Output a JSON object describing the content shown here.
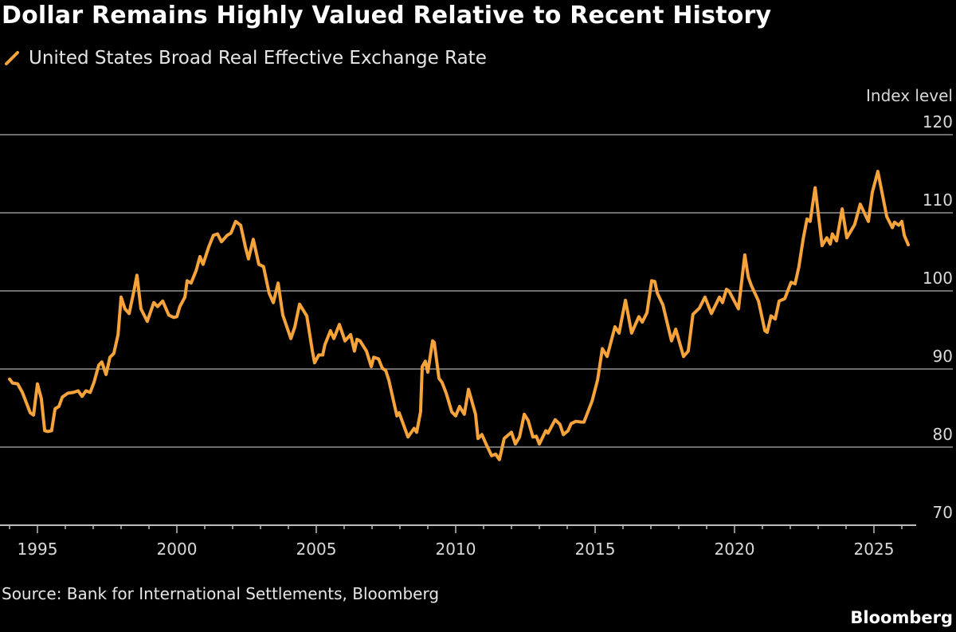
{
  "colors": {
    "background": "#000000",
    "series": "#f5a33a",
    "grid": "#6e6e6e",
    "text": "#d9d9d9"
  },
  "title": "Dollar Remains Highly Valued Relative to Recent History",
  "source": "Source: Bank for International Settlements, Bloomberg",
  "brand": "Bloomberg",
  "chart_data": {
    "type": "line",
    "title": "Dollar Remains Highly Valued Relative to Recent History",
    "ylabel": "Index level",
    "ylim": [
      70,
      120
    ],
    "yticks": [
      "70",
      "80",
      "90",
      "100",
      "110",
      "120"
    ],
    "xlim": [
      1994,
      2026.3
    ],
    "xticks": [
      "1995",
      "2000",
      "2005",
      "2010",
      "2015",
      "2020",
      "2025"
    ],
    "grid": true,
    "legend_position": "top-left",
    "series": [
      {
        "name": "United States Broad Real Effective Exchange Rate",
        "x": [
          1994.0,
          1994.11,
          1994.29,
          1994.46,
          1994.6,
          1994.74,
          1994.86,
          1995.0,
          1995.14,
          1995.26,
          1995.37,
          1995.51,
          1995.63,
          1995.77,
          1995.89,
          1996.09,
          1996.29,
          1996.46,
          1996.6,
          1996.74,
          1996.89,
          1997.03,
          1997.2,
          1997.31,
          1997.46,
          1997.6,
          1997.74,
          1997.89,
          1998.0,
          1998.14,
          1998.29,
          1998.46,
          1998.57,
          1998.71,
          1998.94,
          1999.17,
          1999.31,
          1999.49,
          1999.71,
          1999.89,
          2000.0,
          2000.11,
          2000.29,
          2000.37,
          2000.51,
          2000.69,
          2000.83,
          2000.94,
          2001.14,
          2001.31,
          2001.46,
          2001.6,
          2001.8,
          2001.94,
          2002.11,
          2002.29,
          2002.46,
          2002.57,
          2002.74,
          2002.94,
          2003.11,
          2003.31,
          2003.46,
          2003.63,
          2003.8,
          2004.09,
          2004.23,
          2004.4,
          2004.66,
          2004.86,
          2004.94,
          2005.09,
          2005.23,
          2005.31,
          2005.51,
          2005.63,
          2005.83,
          2006.03,
          2006.23,
          2006.37,
          2006.46,
          2006.57,
          2006.8,
          2006.97,
          2007.06,
          2007.23,
          2007.37,
          2007.49,
          2007.6,
          2007.89,
          2007.97,
          2008.29,
          2008.51,
          2008.6,
          2008.74,
          2008.8,
          2008.91,
          2009.0,
          2009.17,
          2009.23,
          2009.4,
          2009.51,
          2009.66,
          2009.86,
          2010.0,
          2010.14,
          2010.31,
          2010.46,
          2010.71,
          2010.8,
          2010.94,
          2011.09,
          2011.29,
          2011.43,
          2011.57,
          2011.74,
          2012.0,
          2012.14,
          2012.29,
          2012.46,
          2012.6,
          2012.77,
          2012.89,
          2013.0,
          2013.23,
          2013.31,
          2013.57,
          2013.74,
          2013.86,
          2014.03,
          2014.14,
          2014.31,
          2014.51,
          2014.6,
          2014.89,
          2015.09,
          2015.26,
          2015.43,
          2015.71,
          2015.86,
          2015.94,
          2016.09,
          2016.31,
          2016.57,
          2016.69,
          2016.86,
          2017.03,
          2017.14,
          2017.23,
          2017.43,
          2017.74,
          2017.89,
          2018.17,
          2018.34,
          2018.51,
          2018.74,
          2018.94,
          2019.17,
          2019.46,
          2019.57,
          2019.71,
          2019.8,
          2020.14,
          2020.37,
          2020.49,
          2020.6,
          2020.86,
          2021.09,
          2021.17,
          2021.31,
          2021.46,
          2021.6,
          2021.8,
          2022.03,
          2022.17,
          2022.31,
          2022.46,
          2022.6,
          2022.71,
          2022.89,
          2023.14,
          2023.31,
          2023.43,
          2023.51,
          2023.66,
          2023.86,
          2024.03,
          2024.31,
          2024.51,
          2024.8,
          2024.94,
          2025.14,
          2025.46,
          2025.66,
          2025.74,
          2025.89,
          2026.0,
          2026.09,
          2026.23
        ],
        "values": [
          88.7,
          88.2,
          88.1,
          87.0,
          85.7,
          84.4,
          84.1,
          88.1,
          86.2,
          82.1,
          82.0,
          82.1,
          84.9,
          85.2,
          86.4,
          86.9,
          87.0,
          87.2,
          86.5,
          87.2,
          87.0,
          88.3,
          90.5,
          90.9,
          89.3,
          91.5,
          92.0,
          94.4,
          99.2,
          97.7,
          97.1,
          100.0,
          102.0,
          97.7,
          96.1,
          98.5,
          98.0,
          98.7,
          96.9,
          96.6,
          96.7,
          98.0,
          99.2,
          101.3,
          101.0,
          102.6,
          104.4,
          103.4,
          105.6,
          107.1,
          107.3,
          106.3,
          107.1,
          107.4,
          108.9,
          108.4,
          105.6,
          104.1,
          106.6,
          103.4,
          103.1,
          99.7,
          98.5,
          101.0,
          96.9,
          93.9,
          95.4,
          98.3,
          96.8,
          92.3,
          90.8,
          91.8,
          91.8,
          93.1,
          94.9,
          93.9,
          95.7,
          93.6,
          94.4,
          92.3,
          93.8,
          93.6,
          92.3,
          90.3,
          91.5,
          91.3,
          90.1,
          89.8,
          88.6,
          84.0,
          84.4,
          81.3,
          82.4,
          81.9,
          84.5,
          90.3,
          91.0,
          89.6,
          93.6,
          93.4,
          88.8,
          88.3,
          86.9,
          84.5,
          84.0,
          85.2,
          84.2,
          87.4,
          84.2,
          81.1,
          81.6,
          80.4,
          78.9,
          79.1,
          78.4,
          81.1,
          81.9,
          80.4,
          81.3,
          84.2,
          83.4,
          81.3,
          81.4,
          80.4,
          82.1,
          81.8,
          83.5,
          82.9,
          81.6,
          82.1,
          83.0,
          83.3,
          83.2,
          83.2,
          85.9,
          88.6,
          92.6,
          91.6,
          95.4,
          94.6,
          96.1,
          98.8,
          94.6,
          96.7,
          96.0,
          97.2,
          101.3,
          101.2,
          99.7,
          98.2,
          93.6,
          95.1,
          91.6,
          92.3,
          97.0,
          97.8,
          99.2,
          97.1,
          99.2,
          98.5,
          100.2,
          100.0,
          97.7,
          104.6,
          101.8,
          100.7,
          98.7,
          94.9,
          94.7,
          96.8,
          96.4,
          98.7,
          99.0,
          101.1,
          100.9,
          103.1,
          106.6,
          109.2,
          108.9,
          113.2,
          105.8,
          106.8,
          106.0,
          107.3,
          106.4,
          110.5,
          106.8,
          108.5,
          111.1,
          108.9,
          112.6,
          115.3,
          109.5,
          108.1,
          108.8,
          108.4,
          108.9,
          107.1,
          105.9
        ]
      }
    ]
  }
}
